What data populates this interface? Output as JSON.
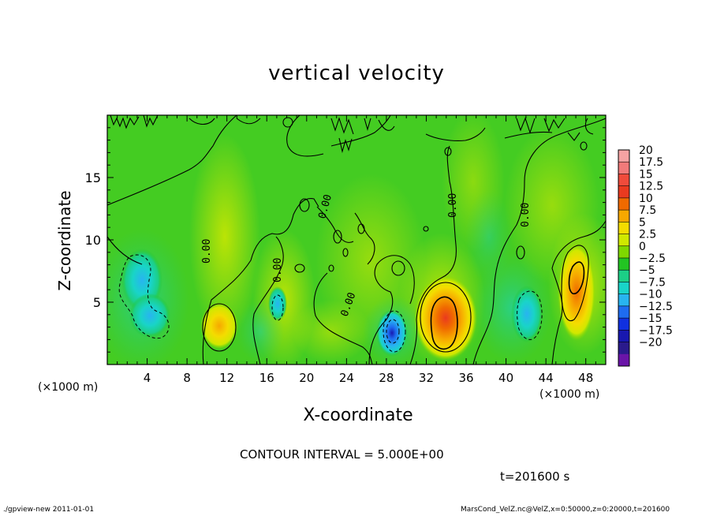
{
  "chart_data": {
    "type": "heatmap",
    "title": "vertical velocity",
    "xlabel": "X-coordinate",
    "ylabel": "Z-coordinate",
    "x_unit": "(×1000 m)",
    "y_unit": "(×1000 m)",
    "xlim": [
      0,
      50
    ],
    "ylim": [
      0,
      20
    ],
    "x_ticks": [
      4,
      8,
      12,
      16,
      20,
      24,
      28,
      32,
      36,
      40,
      44,
      48
    ],
    "y_ticks": [
      5,
      10,
      15
    ],
    "contour_interval_text": "CONTOUR INTERVAL = 5.000E+00",
    "contour_labels": [
      "0.00",
      "0.00",
      "0.00",
      "0.00",
      "0.00",
      "0.00"
    ],
    "colorbar": {
      "labels": [
        "20",
        "17.5",
        "15",
        "12.5",
        "10",
        "7.5",
        "5",
        "2.5",
        "0",
        "−2.5",
        "−5",
        "−7.5",
        "−10",
        "−12.5",
        "−15",
        "−17.5",
        "−20"
      ],
      "values": [
        20,
        17.5,
        15,
        12.5,
        10,
        7.5,
        5,
        2.5,
        0,
        -2.5,
        -5,
        -7.5,
        -10,
        -12.5,
        -15,
        -17.5,
        -20
      ],
      "colors": [
        "#f5a3a3",
        "#f27a7a",
        "#f04b3b",
        "#ea3a1f",
        "#f06a00",
        "#f6a800",
        "#f4dc00",
        "#d0e800",
        "#7fd800",
        "#22c422",
        "#1ccf86",
        "#19d4c8",
        "#28b4f0",
        "#1e6cf0",
        "#1030e0",
        "#1818b0",
        "#2a1a8c",
        "#6a14a8"
      ]
    },
    "features": [
      {
        "kind": "updraft",
        "x": 11,
        "z": 3.2,
        "max": 7.5
      },
      {
        "kind": "updraft",
        "x": 33.5,
        "z": 4,
        "max": 13
      },
      {
        "kind": "updraft",
        "x": 47,
        "z": 6.5,
        "max": 11
      },
      {
        "kind": "downdraft",
        "x": 3.5,
        "z": 5.5,
        "min": -6
      },
      {
        "kind": "downdraft",
        "x": 28.5,
        "z": 2.5,
        "min": -14
      },
      {
        "kind": "downdraft",
        "x": 41.5,
        "z": 4,
        "min": -7
      },
      {
        "kind": "downdraft",
        "x": 17,
        "z": 4.5,
        "min": -4
      }
    ]
  },
  "time_label": "t=201600 s",
  "footer_left": "./gpview-new   2011-01-01",
  "footer_right": "MarsCond_VelZ.nc@VelZ,x=0:50000,z=0:20000,t=201600"
}
